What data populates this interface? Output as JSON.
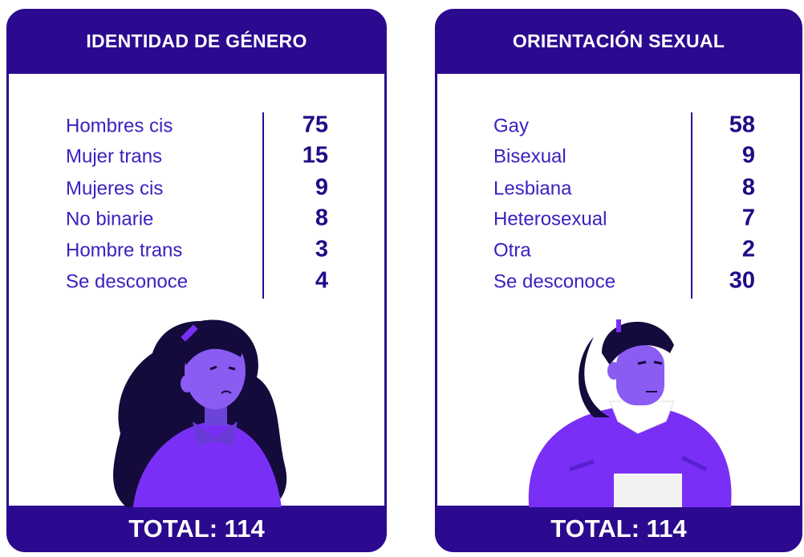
{
  "cards": [
    {
      "title": "IDENTIDAD DE GÉNERO",
      "rows": [
        {
          "label": "Hombres cis",
          "value": 75
        },
        {
          "label": "Mujer trans",
          "value": 15
        },
        {
          "label": "Mujeres cis",
          "value": 9
        },
        {
          "label": "No binarie",
          "value": 8
        },
        {
          "label": "Hombre trans",
          "value": 3
        },
        {
          "label": "Se desconoce",
          "value": 4
        }
      ],
      "total": "TOTAL: 114"
    },
    {
      "title": "ORIENTACIÓN SEXUAL",
      "rows": [
        {
          "label": "Gay",
          "value": 58
        },
        {
          "label": "Bisexual",
          "value": 9
        },
        {
          "label": "Lesbiana",
          "value": 8
        },
        {
          "label": "Heterosexual",
          "value": 7
        },
        {
          "label": "Otra",
          "value": 2
        },
        {
          "label": "Se desconoce",
          "value": 30
        }
      ],
      "total": "TOTAL: 114"
    }
  ]
}
